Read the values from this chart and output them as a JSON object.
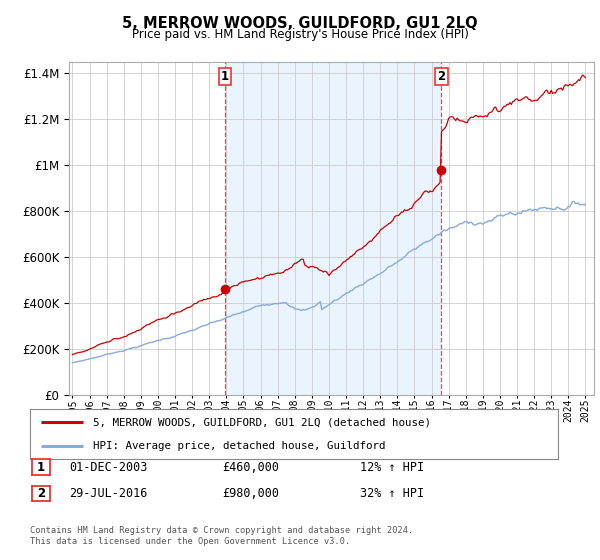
{
  "title": "5, MERROW WOODS, GUILDFORD, GU1 2LQ",
  "subtitle": "Price paid vs. HM Land Registry's House Price Index (HPI)",
  "legend_line1": "5, MERROW WOODS, GUILDFORD, GU1 2LQ (detached house)",
  "legend_line2": "HPI: Average price, detached house, Guildford",
  "table_row1_date": "01-DEC-2003",
  "table_row1_price": "£460,000",
  "table_row1_hpi": "12% ↑ HPI",
  "table_row2_date": "29-JUL-2016",
  "table_row2_price": "£980,000",
  "table_row2_hpi": "32% ↑ HPI",
  "footnote": "Contains HM Land Registry data © Crown copyright and database right 2024.\nThis data is licensed under the Open Government Licence v3.0.",
  "sale1_year": 2003.92,
  "sale1_price": 460000,
  "sale2_year": 2016.58,
  "sale2_price": 980000,
  "red_color": "#cc0000",
  "blue_color": "#88aadd",
  "shade_color": "#ddeeff",
  "dashed_color": "#ee3333",
  "background_color": "#ffffff",
  "grid_color": "#cccccc",
  "ylim_min": 0,
  "ylim_max": 1450000,
  "xlim_min": 1994.8,
  "xlim_max": 2025.5
}
